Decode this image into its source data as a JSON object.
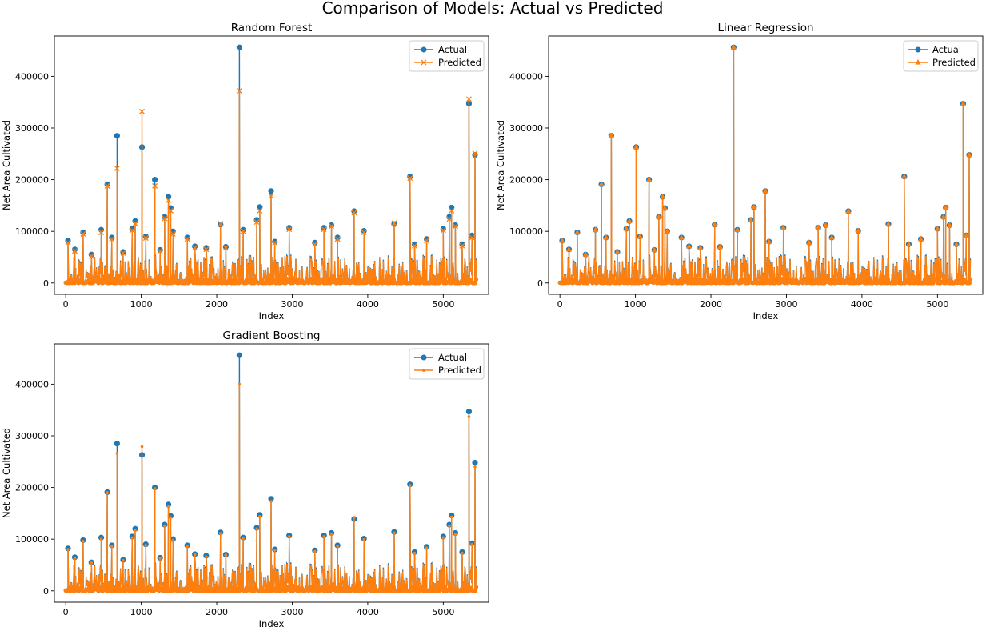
{
  "figure": {
    "suptitle": "Comparison of Models: Actual vs Predicted",
    "colors": {
      "actual": "#1f77b4",
      "predicted": "#ff7f0e"
    }
  },
  "chart_data": [
    {
      "type": "line",
      "title": "Random Forest",
      "xlabel": "Index",
      "ylabel": "Net Area Cultivated",
      "xlim": [
        -150,
        5600
      ],
      "ylim": [
        -22000,
        478000
      ],
      "xticks": [
        0,
        1000,
        2000,
        3000,
        4000,
        5000
      ],
      "yticks": [
        0,
        100000,
        200000,
        300000,
        400000
      ],
      "xtick_labels": [
        "0",
        "1000",
        "2000",
        "3000",
        "4000",
        "5000"
      ],
      "ytick_labels": [
        "0",
        "100000",
        "200000",
        "300000",
        "400000"
      ],
      "legend": {
        "position": "top-right",
        "entries": [
          "Actual",
          "Predicted"
        ]
      },
      "series": [
        {
          "name": "Actual",
          "marker": "circle",
          "color": "#1f77b4",
          "x": [
            30,
            120,
            230,
            340,
            470,
            550,
            610,
            680,
            760,
            880,
            920,
            1010,
            1060,
            1180,
            1250,
            1310,
            1360,
            1390,
            1420,
            1610,
            1710,
            1860,
            2050,
            2120,
            2300,
            2350,
            2530,
            2570,
            2720,
            2770,
            2960,
            3300,
            3420,
            3520,
            3600,
            3820,
            3950,
            4350,
            4560,
            4620,
            4780,
            5000,
            5080,
            5110,
            5160,
            5250,
            5340,
            5380,
            5420
          ],
          "y": [
            82000,
            65000,
            98000,
            55000,
            103000,
            191000,
            88000,
            285000,
            60000,
            105000,
            120000,
            263000,
            90000,
            200000,
            64000,
            128000,
            167000,
            145000,
            100000,
            88000,
            71000,
            68000,
            113000,
            70000,
            456000,
            103000,
            122000,
            147000,
            178000,
            80000,
            107000,
            78000,
            107000,
            112000,
            88000,
            139000,
            101000,
            114000,
            206000,
            75000,
            85000,
            105000,
            128000,
            146000,
            112000,
            75000,
            347000,
            92000,
            248000
          ]
        },
        {
          "name": "Predicted",
          "marker": "x",
          "color": "#ff7f0e",
          "x": [
            30,
            120,
            230,
            340,
            470,
            550,
            610,
            680,
            760,
            880,
            920,
            1010,
            1060,
            1180,
            1250,
            1310,
            1360,
            1390,
            1420,
            1610,
            1710,
            1860,
            2050,
            2120,
            2300,
            2350,
            2530,
            2570,
            2720,
            2770,
            2960,
            3300,
            3420,
            3520,
            3600,
            3820,
            3950,
            4350,
            4560,
            4620,
            4780,
            5000,
            5080,
            5110,
            5160,
            5250,
            5340,
            5380,
            5420
          ],
          "y": [
            78000,
            62000,
            95000,
            52000,
            98000,
            188000,
            85000,
            222000,
            58000,
            102000,
            115000,
            332000,
            87000,
            188000,
            62000,
            125000,
            160000,
            140000,
            95000,
            85000,
            68000,
            65000,
            115000,
            68000,
            372000,
            100000,
            118000,
            140000,
            168000,
            78000,
            104000,
            75000,
            104000,
            110000,
            85000,
            136000,
            98000,
            116000,
            203000,
            72000,
            82000,
            102000,
            124000,
            140000,
            110000,
            72000,
            356000,
            88000,
            251000
          ]
        }
      ]
    },
    {
      "type": "line",
      "title": "Linear Regression",
      "xlabel": "Index",
      "ylabel": "Net Area Cultivated",
      "xlim": [
        -150,
        5600
      ],
      "ylim": [
        -22000,
        478000
      ],
      "xticks": [
        0,
        1000,
        2000,
        3000,
        4000,
        5000
      ],
      "yticks": [
        0,
        100000,
        200000,
        300000,
        400000
      ],
      "xtick_labels": [
        "0",
        "1000",
        "2000",
        "3000",
        "4000",
        "5000"
      ],
      "ytick_labels": [
        "0",
        "100000",
        "200000",
        "300000",
        "400000"
      ],
      "legend": {
        "position": "top-right",
        "entries": [
          "Actual",
          "Predicted"
        ]
      },
      "series": [
        {
          "name": "Actual",
          "marker": "circle",
          "color": "#1f77b4",
          "x": [
            30,
            120,
            230,
            340,
            470,
            550,
            610,
            680,
            760,
            880,
            920,
            1010,
            1060,
            1180,
            1250,
            1310,
            1360,
            1390,
            1420,
            1610,
            1710,
            1860,
            2050,
            2120,
            2300,
            2350,
            2530,
            2570,
            2720,
            2770,
            2960,
            3300,
            3420,
            3520,
            3600,
            3820,
            3950,
            4350,
            4560,
            4620,
            4780,
            5000,
            5080,
            5110,
            5160,
            5250,
            5340,
            5380,
            5420
          ],
          "y": [
            82000,
            65000,
            98000,
            55000,
            103000,
            191000,
            88000,
            285000,
            60000,
            105000,
            120000,
            263000,
            90000,
            200000,
            64000,
            128000,
            167000,
            145000,
            100000,
            88000,
            71000,
            68000,
            113000,
            70000,
            456000,
            103000,
            122000,
            147000,
            178000,
            80000,
            107000,
            78000,
            107000,
            112000,
            88000,
            139000,
            101000,
            114000,
            206000,
            75000,
            85000,
            105000,
            128000,
            146000,
            112000,
            75000,
            347000,
            92000,
            248000
          ]
        },
        {
          "name": "Predicted",
          "marker": "triangle",
          "color": "#ff7f0e",
          "x": [
            30,
            120,
            230,
            340,
            470,
            550,
            610,
            680,
            760,
            880,
            920,
            1010,
            1060,
            1180,
            1250,
            1310,
            1360,
            1390,
            1420,
            1610,
            1710,
            1860,
            2050,
            2120,
            2300,
            2350,
            2530,
            2570,
            2720,
            2770,
            2960,
            3300,
            3420,
            3520,
            3600,
            3820,
            3950,
            4350,
            4560,
            4620,
            4780,
            5000,
            5080,
            5110,
            5160,
            5250,
            5340,
            5380,
            5420
          ],
          "y": [
            82000,
            65000,
            98000,
            55000,
            103000,
            191000,
            88000,
            285000,
            60000,
            105000,
            120000,
            263000,
            90000,
            200000,
            64000,
            128000,
            167000,
            145000,
            100000,
            88000,
            71000,
            68000,
            113000,
            70000,
            456000,
            103000,
            122000,
            147000,
            178000,
            80000,
            107000,
            78000,
            107000,
            112000,
            88000,
            139000,
            101000,
            114000,
            206000,
            75000,
            85000,
            105000,
            128000,
            146000,
            112000,
            75000,
            347000,
            92000,
            248000
          ]
        }
      ]
    },
    {
      "type": "line",
      "title": "Gradient Boosting",
      "xlabel": "Index",
      "ylabel": "Net Area Cultivated",
      "xlim": [
        -150,
        5600
      ],
      "ylim": [
        -22000,
        478000
      ],
      "xticks": [
        0,
        1000,
        2000,
        3000,
        4000,
        5000
      ],
      "yticks": [
        0,
        100000,
        200000,
        300000,
        400000
      ],
      "xtick_labels": [
        "0",
        "1000",
        "2000",
        "3000",
        "4000",
        "5000"
      ],
      "ytick_labels": [
        "0",
        "100000",
        "200000",
        "300000",
        "400000"
      ],
      "legend": {
        "position": "top-right",
        "entries": [
          "Actual",
          "Predicted"
        ]
      },
      "series": [
        {
          "name": "Actual",
          "marker": "circle",
          "color": "#1f77b4",
          "x": [
            30,
            120,
            230,
            340,
            470,
            550,
            610,
            680,
            760,
            880,
            920,
            1010,
            1060,
            1180,
            1250,
            1310,
            1360,
            1390,
            1420,
            1610,
            1710,
            1860,
            2050,
            2120,
            2300,
            2350,
            2530,
            2570,
            2720,
            2770,
            2960,
            3300,
            3420,
            3520,
            3600,
            3820,
            3950,
            4350,
            4560,
            4620,
            4780,
            5000,
            5080,
            5110,
            5160,
            5250,
            5340,
            5380,
            5420
          ],
          "y": [
            82000,
            65000,
            98000,
            55000,
            103000,
            191000,
            88000,
            285000,
            60000,
            105000,
            120000,
            263000,
            90000,
            200000,
            64000,
            128000,
            167000,
            145000,
            100000,
            88000,
            71000,
            68000,
            113000,
            70000,
            456000,
            103000,
            122000,
            147000,
            178000,
            80000,
            107000,
            78000,
            107000,
            112000,
            88000,
            139000,
            101000,
            114000,
            206000,
            75000,
            85000,
            105000,
            128000,
            146000,
            112000,
            75000,
            347000,
            92000,
            248000
          ]
        },
        {
          "name": "Predicted",
          "marker": "point",
          "color": "#ff7f0e",
          "x": [
            30,
            120,
            230,
            340,
            470,
            550,
            610,
            680,
            760,
            880,
            920,
            1010,
            1060,
            1180,
            1250,
            1310,
            1360,
            1390,
            1420,
            1610,
            1710,
            1860,
            2050,
            2120,
            2300,
            2350,
            2530,
            2570,
            2720,
            2770,
            2960,
            3300,
            3420,
            3520,
            3600,
            3820,
            3950,
            4350,
            4560,
            4620,
            4780,
            5000,
            5080,
            5110,
            5160,
            5250,
            5340,
            5380,
            5420
          ],
          "y": [
            80000,
            63000,
            96000,
            54000,
            100000,
            190000,
            86000,
            266000,
            59000,
            103000,
            117000,
            279000,
            88000,
            198000,
            63000,
            126000,
            163000,
            142000,
            98000,
            86000,
            70000,
            66000,
            111000,
            69000,
            400000,
            101000,
            120000,
            144000,
            173000,
            79000,
            105000,
            76000,
            105000,
            110000,
            86000,
            142000,
            99000,
            112000,
            204000,
            73000,
            83000,
            103000,
            126000,
            143000,
            110000,
            73000,
            337000,
            90000,
            240000
          ]
        }
      ]
    }
  ]
}
